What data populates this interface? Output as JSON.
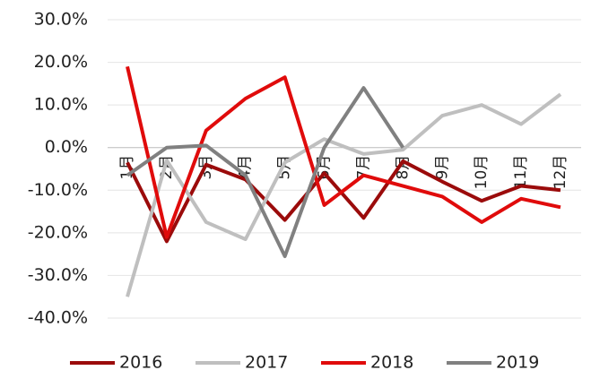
{
  "chart_data": {
    "type": "line",
    "categories": [
      "1月",
      "2月",
      "3月",
      "4月",
      "5月",
      "6月",
      "7月",
      "8月",
      "9月",
      "10月",
      "11月",
      "12月"
    ],
    "series": [
      {
        "name": "2016",
        "color": "#9b0b0b",
        "values": [
          -3.5,
          -22,
          -4,
          -7.5,
          -17,
          -6,
          -16.5,
          -3.2,
          -8,
          -12.5,
          -9,
          -10
        ]
      },
      {
        "name": "2017",
        "color": "#bfbfbf",
        "values": [
          -35,
          -3,
          -17.5,
          -21.5,
          -3.5,
          2,
          -1.5,
          -0.5,
          7.5,
          10,
          5.5,
          12.5
        ]
      },
      {
        "name": "2018",
        "color": "#e00b0b",
        "values": [
          19,
          -21,
          4,
          11.5,
          16.5,
          -13.5,
          -6.5,
          -9,
          -11.5,
          -17.5,
          -12,
          -14
        ]
      },
      {
        "name": "2019",
        "color": "#808080",
        "values": [
          -6.5,
          0,
          0.5,
          -6.5,
          -25.5,
          0,
          14,
          0,
          null,
          null,
          null,
          null
        ]
      }
    ],
    "ylim": [
      -40,
      30
    ],
    "yticks": [
      {
        "value": -40,
        "label": "-40.0%"
      },
      {
        "value": -30,
        "label": "-30.0%"
      },
      {
        "value": -20,
        "label": "-20.0%"
      },
      {
        "value": -10,
        "label": "-10.0%"
      },
      {
        "value": 0,
        "label": "0.0%"
      },
      {
        "value": 10,
        "label": "10.0%"
      },
      {
        "value": 20,
        "label": "20.0%"
      },
      {
        "value": 30,
        "label": "30.0%"
      }
    ],
    "grid": true,
    "legend": "bottom"
  }
}
